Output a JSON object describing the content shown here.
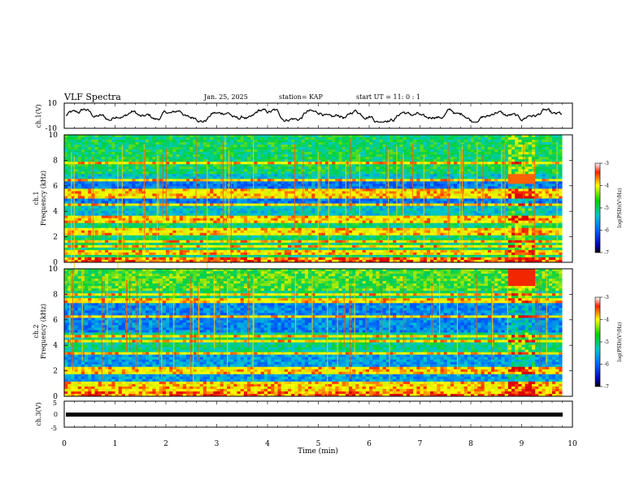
{
  "header": {
    "title": "VLF Spectra",
    "date": "Jan. 25, 2025",
    "station": "station= KAP",
    "start": "start  UT  =   11: 0  : 1"
  },
  "chart_data": [
    {
      "type": "line",
      "name": "ch1-waveform",
      "ylabel": "ch.1(V)",
      "ylim": [
        -10,
        10
      ],
      "yticks": [
        "10",
        "-10"
      ],
      "xlim": [
        0,
        10
      ],
      "series": [
        {
          "values_approx_range": [
            -5,
            6
          ]
        }
      ]
    },
    {
      "type": "heatmap",
      "name": "ch1-spectrogram",
      "ylabel_top": "ch.1",
      "ylabel": "Frequency (kHz)",
      "ylim": [
        0,
        10
      ],
      "yticks": [
        "0",
        "2",
        "4",
        "6",
        "8",
        "10"
      ],
      "xlim": [
        0,
        10
      ],
      "colorbar": {
        "label": "log(PSD)(V²/Hz)",
        "ticks": [
          "-3",
          "-4",
          "-5",
          "-6",
          "-7"
        ],
        "range": [
          -7,
          -3
        ]
      },
      "bands_khz": [
        0.8,
        1.2,
        1.6,
        2.2,
        2.5,
        3.3,
        3.6,
        4.5,
        5.2,
        5.6,
        6.4,
        7.8
      ],
      "event_min": [
        8.75,
        9.3
      ]
    },
    {
      "type": "heatmap",
      "name": "ch2-spectrogram",
      "ylabel_top": "ch.2",
      "ylabel": "Frequency (kHz)",
      "ylim": [
        0,
        10
      ],
      "yticks": [
        "0",
        "2",
        "4",
        "6",
        "8",
        "10"
      ],
      "xlim": [
        0,
        10
      ],
      "colorbar": {
        "label": "log(PSD)(V²/Hz)",
        "ticks": [
          "-3",
          "-4",
          "-5",
          "-6",
          "-7"
        ],
        "range": [
          -7,
          -3
        ]
      },
      "bands_khz": [
        0.6,
        1.0,
        1.8,
        2.1,
        3.4,
        4.3,
        4.7,
        6.3,
        7.5,
        8.0
      ],
      "event_min": [
        8.75,
        9.3
      ]
    },
    {
      "type": "line",
      "name": "ch3-trace",
      "ylabel": "ch.3(V)",
      "ylim": [
        -5,
        5
      ],
      "yticks": [
        "5",
        "0",
        "-5"
      ],
      "xlim": [
        0,
        10
      ],
      "xlabel": "Time (min)",
      "xticks": [
        "0",
        "1",
        "2",
        "3",
        "4",
        "5",
        "6",
        "7",
        "8",
        "9",
        "10"
      ],
      "series": [
        {
          "values_approx": 0
        }
      ]
    }
  ],
  "colors": {
    "low": "#0000b4",
    "mid": "#00c8c8",
    "high": "#ffff00",
    "peak": "#ff0000"
  }
}
